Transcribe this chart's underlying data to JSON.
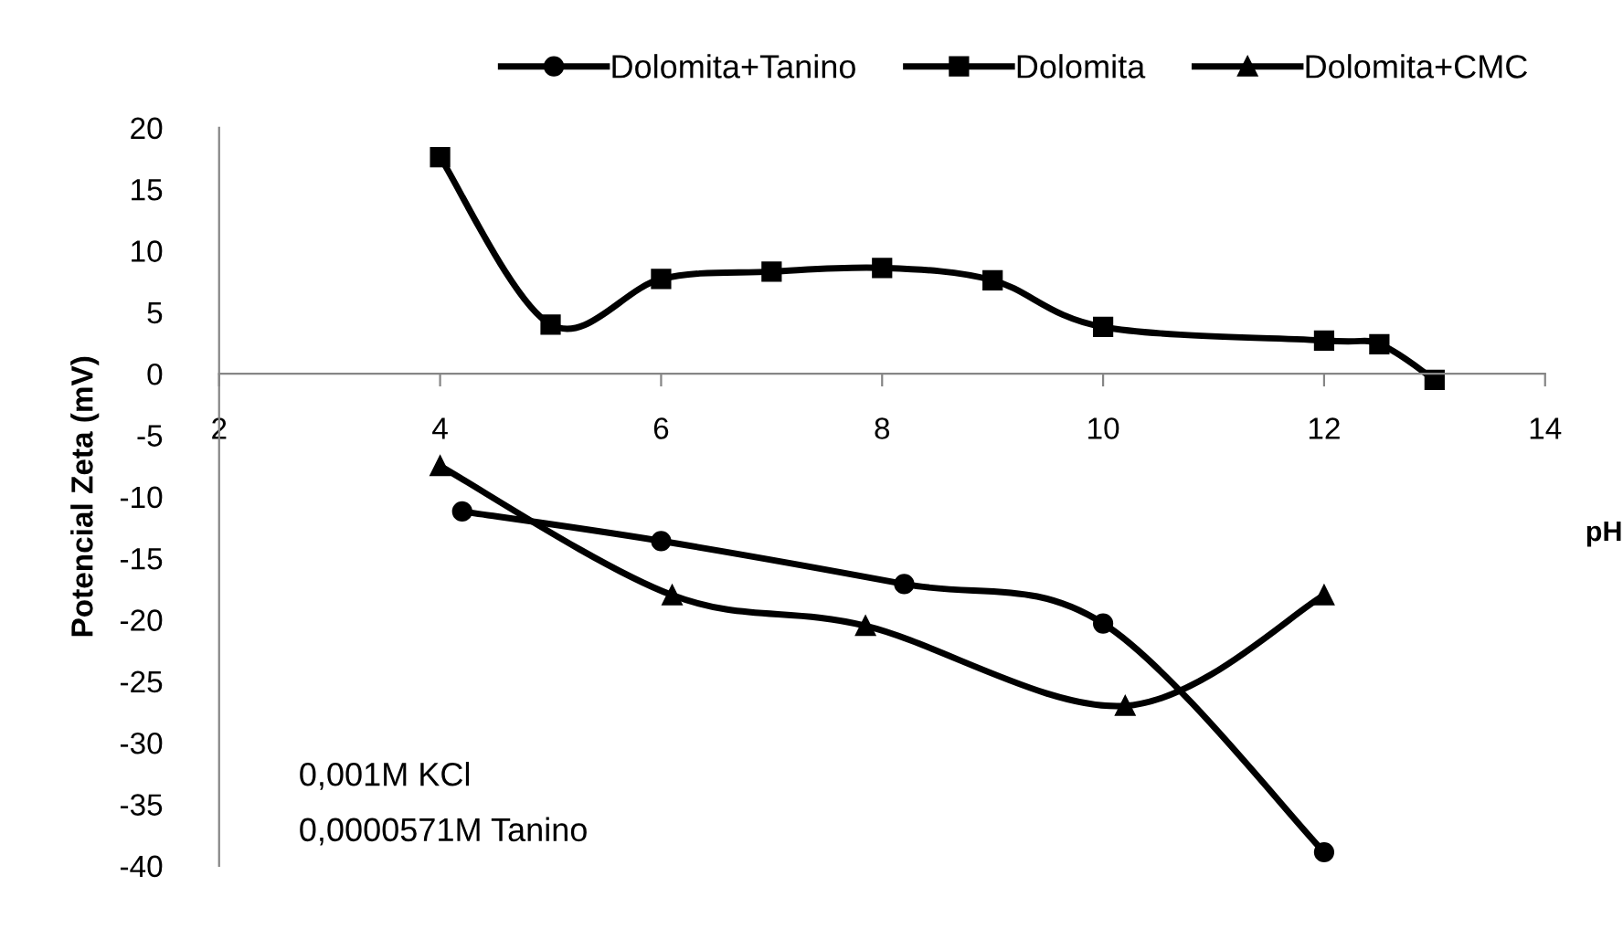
{
  "chart_data": {
    "type": "line",
    "xlabel": "pH",
    "ylabel": "Potencial Zeta (mV)",
    "xlim": [
      2,
      14
    ],
    "xticks": [
      2,
      4,
      6,
      8,
      10,
      12,
      14
    ],
    "ylim": [
      -40,
      20
    ],
    "yticks": [
      -40,
      -35,
      -30,
      -25,
      -20,
      -15,
      -10,
      -5,
      0,
      5,
      10,
      15,
      20
    ],
    "grid": false,
    "legend": "top",
    "line_style": "solid",
    "series": [
      {
        "name": "Dolomita+Tanino",
        "color": "#000000",
        "marker": "circle",
        "x": [
          4.2,
          6,
          8.2,
          10,
          12
        ],
        "values": [
          -11.2,
          -13.6,
          -17.1,
          -20.3,
          -38.9
        ]
      },
      {
        "name": "Dolomita",
        "color": "#000000",
        "marker": "square",
        "x": [
          4,
          5,
          6,
          7,
          8,
          9,
          10,
          12,
          12.5,
          13
        ],
        "values": [
          17.6,
          4.0,
          7.7,
          8.3,
          8.6,
          7.6,
          3.8,
          2.7,
          2.4,
          -0.5
        ]
      },
      {
        "name": "Dolomita+CMC",
        "color": "#000000",
        "marker": "triangle",
        "x": [
          4,
          6.1,
          7.85,
          10.2,
          12
        ],
        "values": [
          -7.5,
          -18.0,
          -20.5,
          -27.0,
          -18.0
        ]
      }
    ],
    "annotations": [
      "0,001M KCl",
      "0,0000571M Tanino"
    ]
  }
}
